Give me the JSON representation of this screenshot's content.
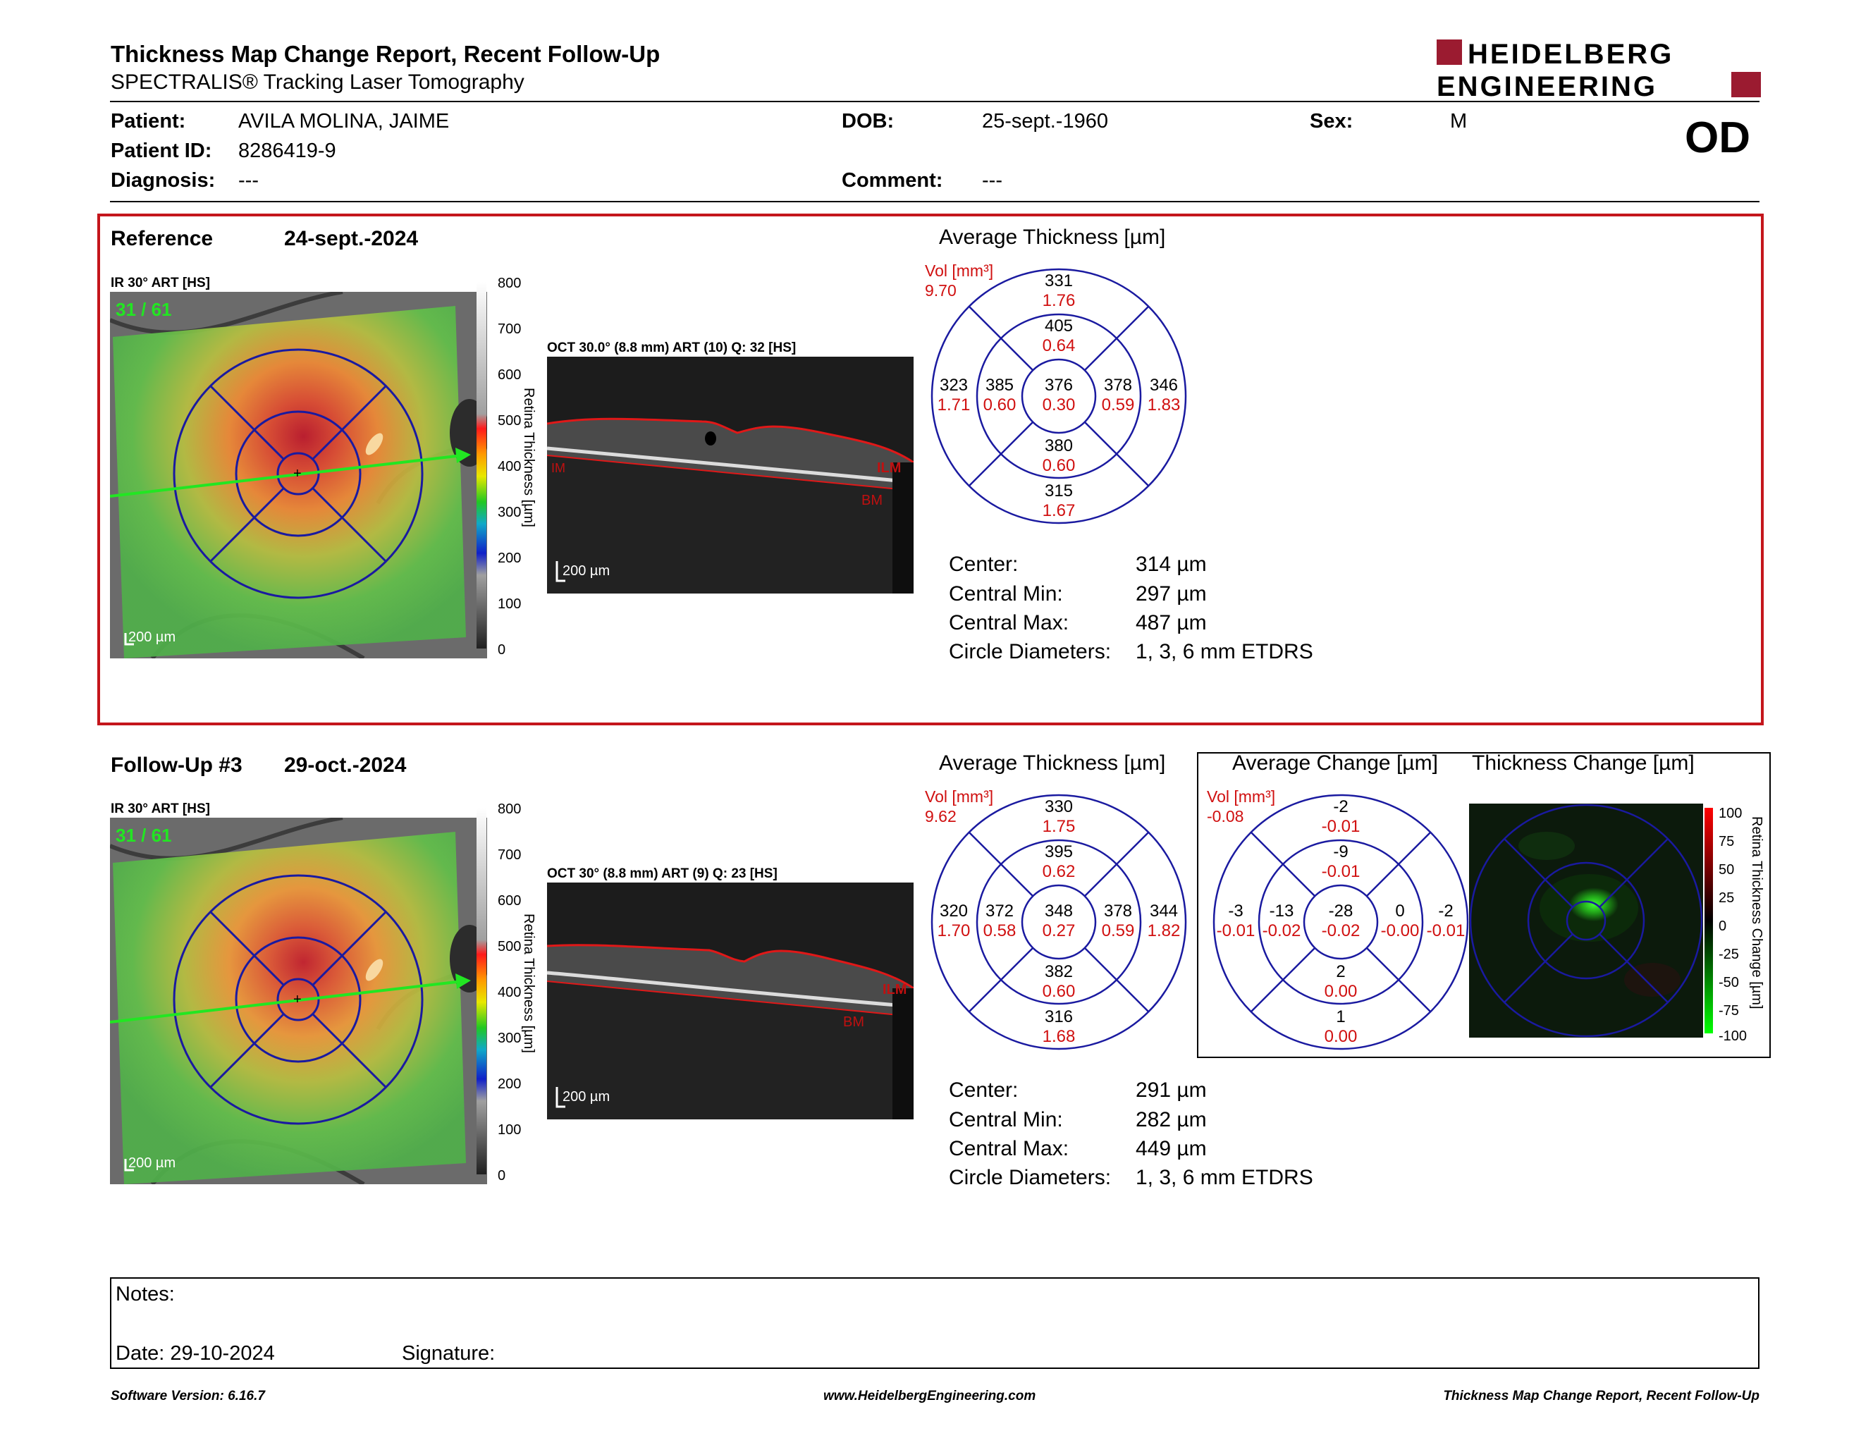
{
  "header": {
    "title": "Thickness Map Change Report, Recent Follow-Up",
    "subtitle": "SPECTRALIS® Tracking Laser Tomography",
    "logo_line1": "HEIDELBERG",
    "logo_line2": "ENGINEERING"
  },
  "patient": {
    "patient_label": "Patient:",
    "patient_value": "AVILA MOLINA, JAIME",
    "id_label": "Patient ID:",
    "id_value": "8286419-9",
    "diagnosis_label": "Diagnosis:",
    "diagnosis_value": "---",
    "dob_label": "DOB:",
    "dob_value": "25-sept.-1960",
    "comment_label": "Comment:",
    "comment_value": "---",
    "sex_label": "Sex:",
    "sex_value": "M",
    "eye": "OD"
  },
  "colors": {
    "frame_red": "#c4161c",
    "grid_blue": "#1a1aa0",
    "vol_red": "#d01010",
    "scan_green": "#22e622"
  },
  "reference": {
    "label": "Reference",
    "date": "24-sept.-2024",
    "ir_label": "IR 30° ART [HS]",
    "frames": "31 / 61",
    "scale": "200 µm",
    "oct_label": "OCT 30.0° (8.8 mm) ART (10) Q: 32 [HS]",
    "oct_scale": "200 µm",
    "ilm": "ILM",
    "bm": "BM",
    "im": "IM",
    "colorbar_ticks": [
      "800",
      "700",
      "600",
      "500",
      "400",
      "300",
      "200",
      "100",
      "0"
    ],
    "colorbar_title": "Retina Thickness [µm]",
    "avg_title": "Average Thickness [µm]",
    "vol_unit": "Vol [mm³]",
    "vol_total": "9.70",
    "grid": {
      "center": {
        "t": "376",
        "v": "0.30"
      },
      "inner_sup": {
        "t": "405",
        "v": "0.64"
      },
      "inner_inf": {
        "t": "380",
        "v": "0.60"
      },
      "inner_temp": {
        "t": "385",
        "v": "0.60"
      },
      "inner_nas": {
        "t": "378",
        "v": "0.59"
      },
      "outer_sup": {
        "t": "331",
        "v": "1.76"
      },
      "outer_inf": {
        "t": "315",
        "v": "1.67"
      },
      "outer_temp": {
        "t": "323",
        "v": "1.71"
      },
      "outer_nas": {
        "t": "346",
        "v": "1.83"
      }
    },
    "stats": [
      {
        "label": "Center:",
        "value": "314 µm"
      },
      {
        "label": "Central Min:",
        "value": "297 µm"
      },
      {
        "label": "Central Max:",
        "value": "487 µm"
      },
      {
        "label": "Circle Diameters:",
        "value": "1, 3, 6 mm ETDRS"
      }
    ]
  },
  "followup": {
    "label": "Follow-Up #3",
    "date": "29-oct.-2024",
    "ir_label": "IR 30° ART [HS]",
    "frames": "31 / 61",
    "scale": "200 µm",
    "oct_label": "OCT 30° (8.8 mm) ART (9) Q: 23 [HS]",
    "oct_scale": "200 µm",
    "ilm": "ILM",
    "bm": "BM",
    "colorbar_ticks": [
      "800",
      "700",
      "600",
      "500",
      "400",
      "300",
      "200",
      "100",
      "0"
    ],
    "colorbar_title": "Retina Thickness [µm]",
    "avg_title": "Average Thickness [µm]",
    "vol_unit": "Vol [mm³]",
    "vol_total": "9.62",
    "grid": {
      "center": {
        "t": "348",
        "v": "0.27"
      },
      "inner_sup": {
        "t": "395",
        "v": "0.62"
      },
      "inner_inf": {
        "t": "382",
        "v": "0.60"
      },
      "inner_temp": {
        "t": "372",
        "v": "0.58"
      },
      "inner_nas": {
        "t": "378",
        "v": "0.59"
      },
      "outer_sup": {
        "t": "330",
        "v": "1.75"
      },
      "outer_inf": {
        "t": "316",
        "v": "1.68"
      },
      "outer_temp": {
        "t": "320",
        "v": "1.70"
      },
      "outer_nas": {
        "t": "344",
        "v": "1.82"
      }
    },
    "change_title": "Average Change [µm]",
    "change_vol_unit": "Vol [mm³]",
    "change_vol_total": "-0.08",
    "change_grid": {
      "center": {
        "t": "-28",
        "v": "-0.02"
      },
      "inner_sup": {
        "t": "-9",
        "v": "-0.01"
      },
      "inner_inf": {
        "t": "2",
        "v": "0.00"
      },
      "inner_temp": {
        "t": "-13",
        "v": "-0.02"
      },
      "inner_nas": {
        "t": "0",
        "v": "-0.00"
      },
      "outer_sup": {
        "t": "-2",
        "v": "-0.01"
      },
      "outer_inf": {
        "t": "1",
        "v": "0.00"
      },
      "outer_temp": {
        "t": "-3",
        "v": "-0.01"
      },
      "outer_nas": {
        "t": "-2",
        "v": "-0.01"
      }
    },
    "tc_title": "Thickness Change [µm]",
    "tc_ticks": [
      "100",
      "75",
      "50",
      "25",
      "0",
      "-25",
      "-50",
      "-75",
      "-100"
    ],
    "tc_colorbar_title": "Retina Thickness Change [µm]",
    "stats": [
      {
        "label": "Center:",
        "value": "291 µm"
      },
      {
        "label": "Central Min:",
        "value": "282 µm"
      },
      {
        "label": "Central Max:",
        "value": "449 µm"
      },
      {
        "label": "Circle Diameters:",
        "value": "1, 3, 6 mm ETDRS"
      }
    ]
  },
  "notes": {
    "notes_label": "Notes:",
    "date_label": "Date: 29-10-2024",
    "signature_label": "Signature:"
  },
  "footer": {
    "software": "Software Version: 6.16.7",
    "url": "www.HeidelbergEngineering.com",
    "report": "Thickness Map Change Report, Recent Follow-Up"
  }
}
